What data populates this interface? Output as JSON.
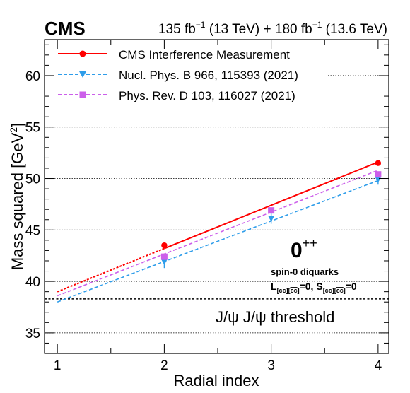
{
  "header": {
    "experiment": "CMS",
    "lumi": {
      "l1": "135 fb",
      "e1": "−1",
      "m1": " (13 TeV) + 180 fb",
      "e2": "−1",
      "m2": " (13.6 TeV)"
    }
  },
  "legend": [
    {
      "label": "CMS Interference Measurement",
      "color": "#ff0000",
      "marker": "circle",
      "dash": "solid"
    },
    {
      "label": "Nucl. Phys. B 966, 115393 (2021)",
      "color": "#2e9dea",
      "marker": "triangle-down",
      "dash": "dashed"
    },
    {
      "label": "Phys. Rev. D 103, 116027 (2021)",
      "color": "#cc5fea",
      "marker": "square",
      "dash": "dashed"
    }
  ],
  "annotations": {
    "jp_big": "0",
    "jp_sup": "++",
    "line2": "spin-0 diquarks",
    "line3": {
      "l": "L",
      "ls": "[cc][",
      "lb": "cc",
      "le": "]",
      "eq1": "=0, ",
      "s": "S",
      "ss": "[cc][",
      "sb": "cc",
      "se": "]",
      "eq2": "=0"
    },
    "threshold": "J/ψ J/ψ threshold"
  },
  "axes": {
    "ylabel_main": "Mass squared [GeV",
    "ylabel_sup": "2",
    "ylabel_end": "]",
    "xlabel": "Radial index"
  },
  "chart_data": {
    "type": "scatter",
    "xlabel": "Radial index",
    "ylabel": "Mass squared [GeV2]",
    "xlim": [
      0.88,
      4.1
    ],
    "ylim": [
      33.0,
      63.5
    ],
    "xticks": [
      1,
      2,
      3,
      4
    ],
    "yticks": [
      35,
      40,
      45,
      50,
      55,
      60
    ],
    "grid_y": true,
    "legend_position": "top-left",
    "threshold": {
      "label": "J/ψ J/ψ threshold",
      "y": 38.3
    },
    "series": [
      {
        "name": "CMS Interference Measurement",
        "color": "#ff0000",
        "points": [
          {
            "x": 2,
            "y": 43.5,
            "err": 0.25
          },
          {
            "x": 3,
            "y": 46.9,
            "err": 0.2
          },
          {
            "x": 4,
            "y": 51.5,
            "err": 0.15
          }
        ],
        "fit": {
          "x": [
            1,
            4
          ],
          "y": [
            39.0,
            51.6
          ],
          "solid_from": 2
        }
      },
      {
        "name": "Nucl. Phys. B 966, 115393 (2021)",
        "color": "#2e9dea",
        "points": [
          {
            "x": 2,
            "y": 41.9,
            "err": 0.6
          },
          {
            "x": 3,
            "y": 46.1,
            "err": 0.5
          },
          {
            "x": 4,
            "y": 49.9,
            "err": 0.5
          }
        ],
        "fit": {
          "x": [
            1,
            4
          ],
          "y": [
            38.0,
            49.8
          ]
        }
      },
      {
        "name": "Phys. Rev. D 103, 116027 (2021)",
        "color": "#cc5fea",
        "points": [
          {
            "x": 2,
            "y": 42.4,
            "err": 0
          },
          {
            "x": 3,
            "y": 46.9,
            "err": 0
          },
          {
            "x": 4,
            "y": 50.4,
            "err": 0
          }
        ],
        "fit": {
          "x": [
            1,
            4
          ],
          "y": [
            38.6,
            50.8
          ]
        }
      }
    ]
  }
}
